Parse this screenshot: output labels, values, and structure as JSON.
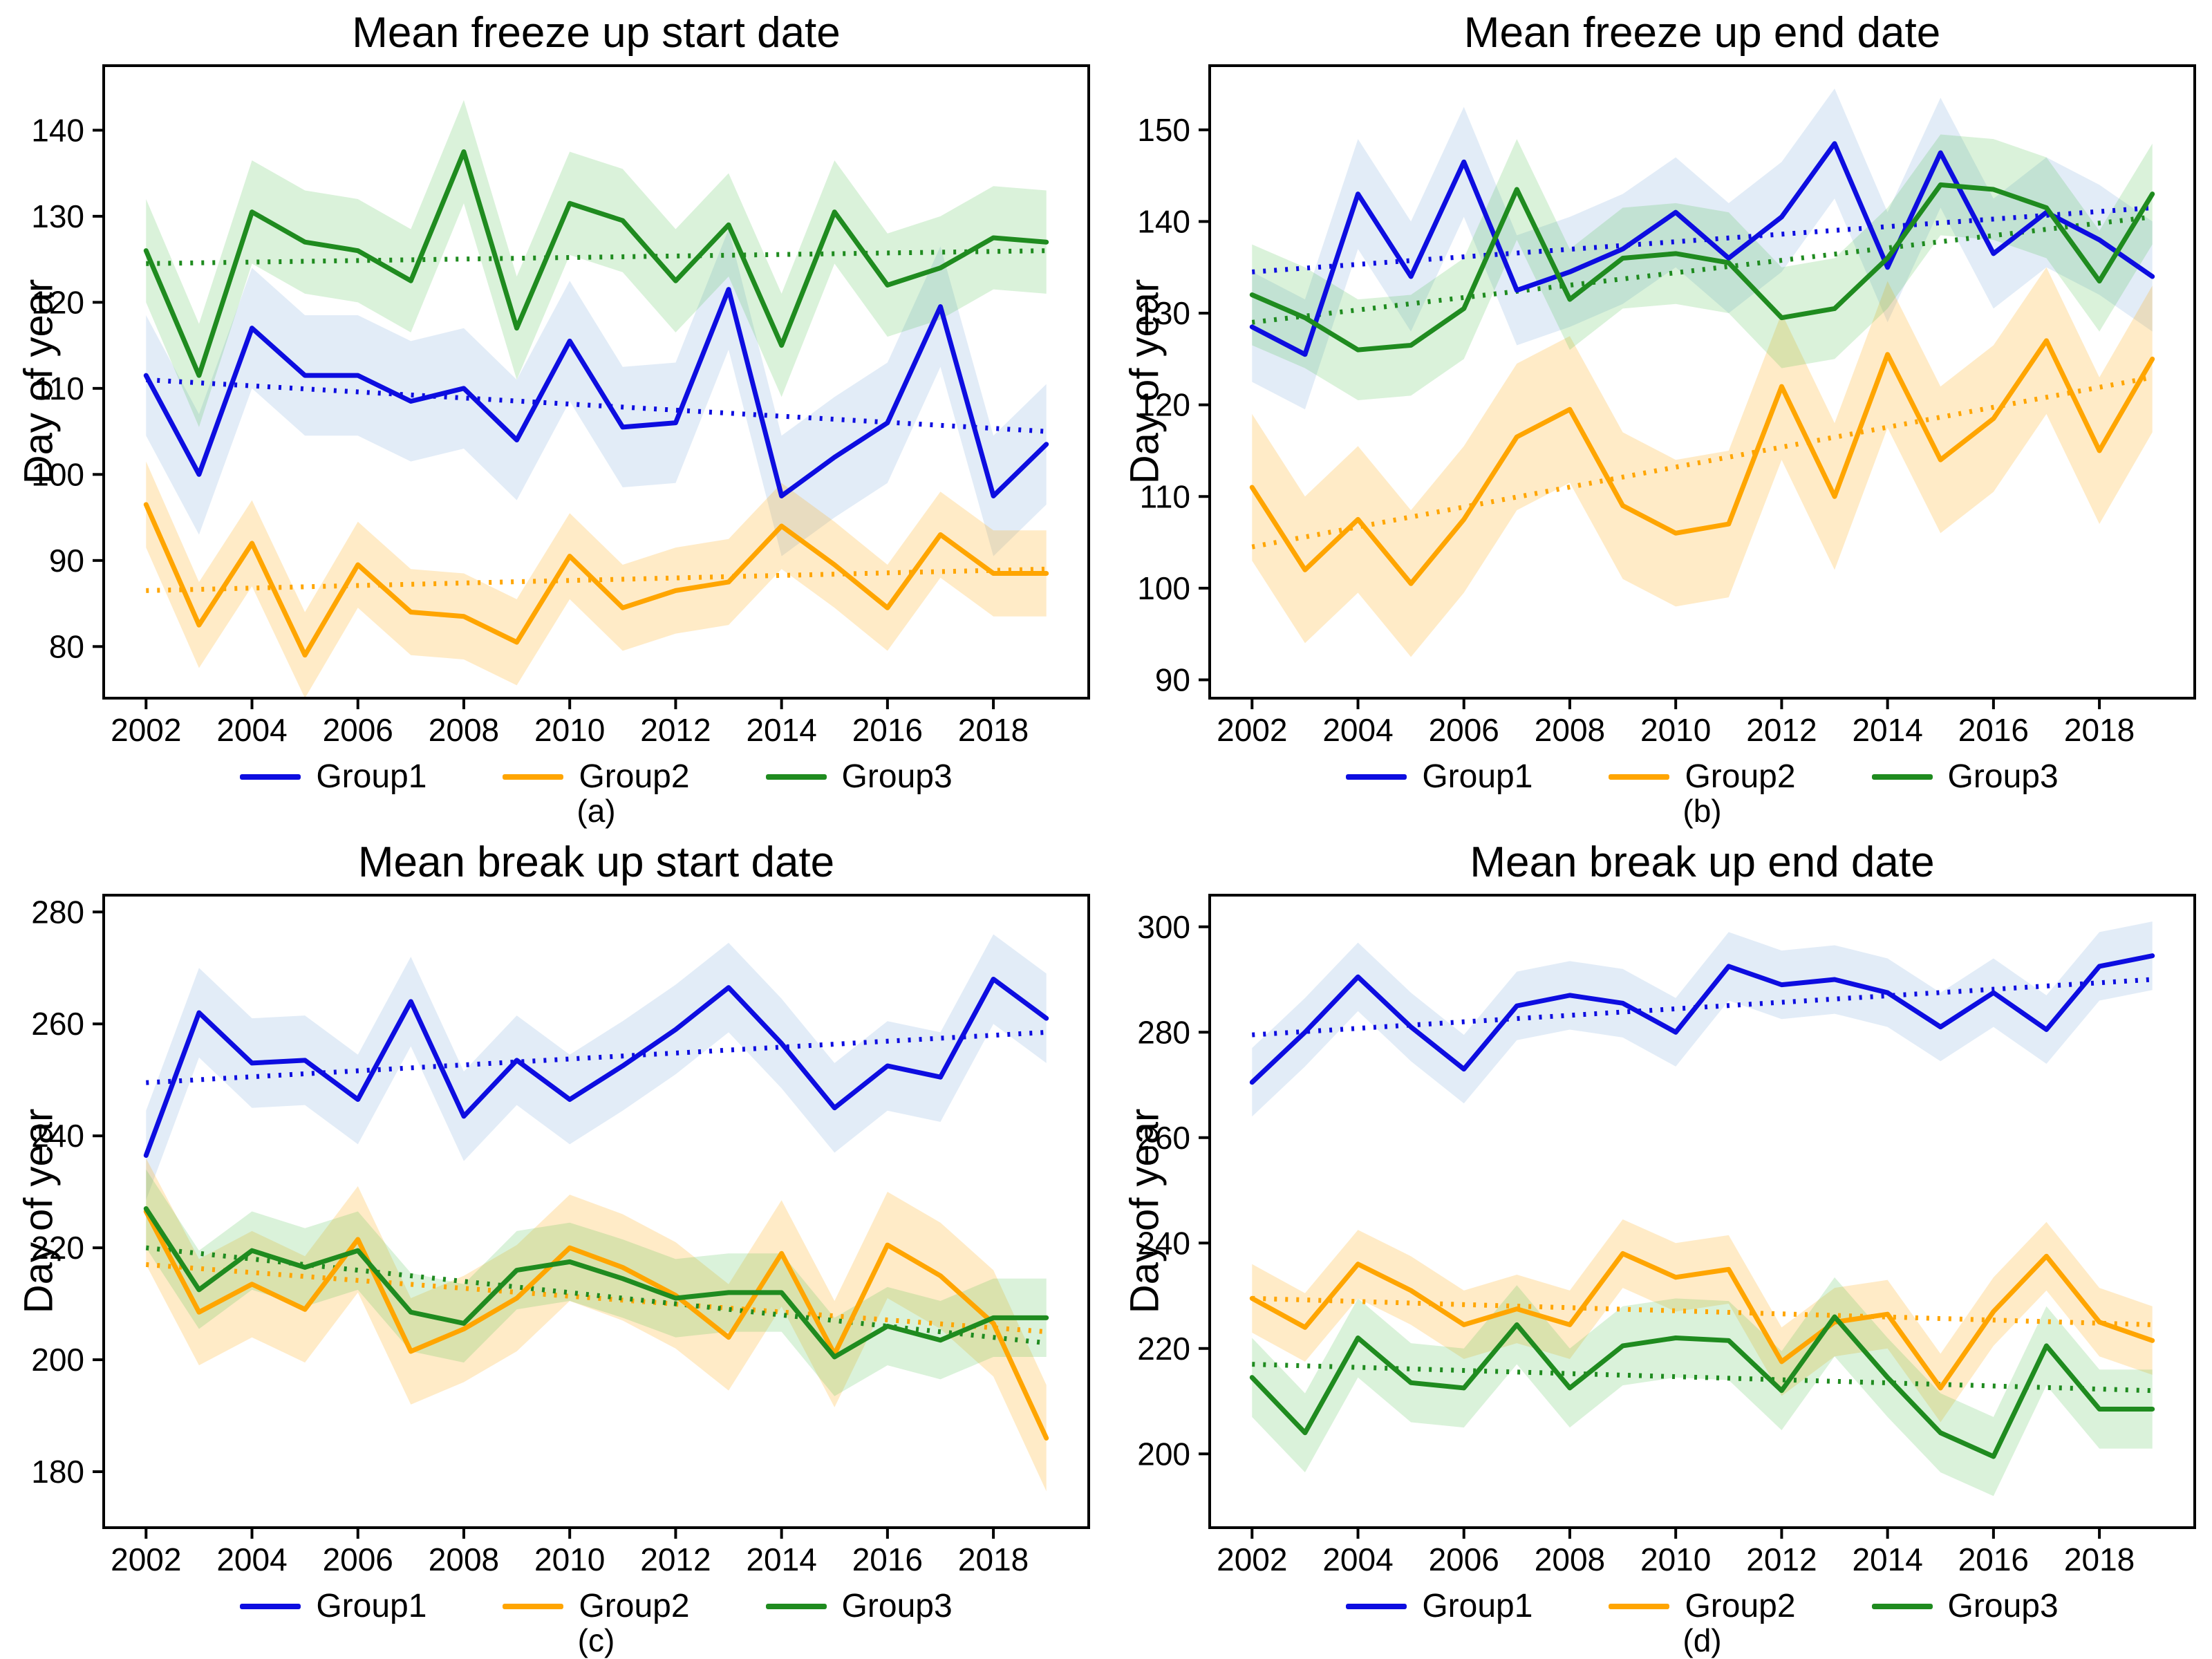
{
  "figure": {
    "background": "#ffffff",
    "ylabel": "Day of year",
    "legend_labels": [
      "Group1",
      "Group2",
      "Group3"
    ],
    "captions": [
      "(a)",
      "(b)",
      "(c)",
      "(d)"
    ]
  },
  "colors": {
    "group1": "#0d0de0",
    "group2": "#ffa500",
    "group3": "#1f8b1f",
    "band1": "rgba(110,160,215,0.20)",
    "band2": "rgba(255,165,0,0.22)",
    "band3": "rgba(70,190,70,0.20)",
    "axis": "#000000"
  },
  "chart_data": {
    "type": "line",
    "x": [
      2002,
      2003,
      2004,
      2005,
      2006,
      2007,
      2008,
      2009,
      2010,
      2011,
      2012,
      2013,
      2014,
      2015,
      2016,
      2017,
      2018,
      2019
    ],
    "xticks": [
      2002,
      2004,
      2006,
      2008,
      2010,
      2012,
      2014,
      2016,
      2018
    ],
    "xlim": [
      2001.2,
      2019.8
    ],
    "ylabel": "Day of year",
    "legend_position": "bottom",
    "grid": false,
    "panels": [
      {
        "id": "a",
        "title": "Mean freeze up start date",
        "caption": "(a)",
        "ylim": [
          74,
          147.5
        ],
        "yticks": [
          80,
          90,
          100,
          110,
          120,
          130,
          140
        ],
        "series": [
          {
            "name": "Group1",
            "color": "group1",
            "band": "band1",
            "ci": 7,
            "values": [
              111.5,
              100,
              117,
              111.5,
              111.5,
              108.5,
              110,
              104,
              115.5,
              105.5,
              106,
              121.5,
              97.5,
              102,
              106,
              119.5,
              97.5,
              103.5
            ],
            "trend": [
              111,
              105
            ]
          },
          {
            "name": "Group2",
            "color": "group2",
            "band": "band2",
            "ci": 5,
            "values": [
              96.5,
              82.5,
              92,
              79,
              89.5,
              84,
              83.5,
              80.5,
              90.5,
              84.5,
              86.5,
              87.5,
              94,
              89.5,
              84.5,
              93,
              88.5,
              88.5
            ],
            "trend": [
              86.5,
              89
            ]
          },
          {
            "name": "Group3",
            "color": "group3",
            "band": "band3",
            "ci": 6,
            "values": [
              126,
              111.5,
              130.5,
              127,
              126,
              122.5,
              137.5,
              117,
              131.5,
              129.5,
              122.5,
              129,
              115,
              130.5,
              122,
              124,
              127.5,
              127
            ],
            "trend": [
              124.5,
              126
            ]
          }
        ]
      },
      {
        "id": "b",
        "title": "Mean freeze up end date",
        "caption": "(b)",
        "ylim": [
          88,
          157
        ],
        "yticks": [
          90,
          100,
          110,
          120,
          130,
          140,
          150
        ],
        "series": [
          {
            "name": "Group1",
            "color": "group1",
            "band": "band1",
            "ci": 6,
            "values": [
              128.5,
              125.5,
              143,
              134,
              146.5,
              132.5,
              134.5,
              137,
              141,
              136,
              140.5,
              148.5,
              135,
              147.5,
              136.5,
              141,
              138,
              134
            ],
            "trend": [
              134.5,
              141.5
            ]
          },
          {
            "name": "Group2",
            "color": "group2",
            "band": "band2",
            "ci": 8,
            "values": [
              111,
              102,
              107.5,
              100.5,
              107.5,
              116.5,
              119.5,
              109,
              106,
              107,
              122,
              110,
              125.5,
              114,
              118.5,
              127,
              115,
              125
            ],
            "trend": [
              104.5,
              123
            ]
          },
          {
            "name": "Group3",
            "color": "group3",
            "band": "band3",
            "ci": 5.5,
            "values": [
              132,
              129.5,
              126,
              126.5,
              130.5,
              143.5,
              131.5,
              136,
              136.5,
              135.5,
              129.5,
              130.5,
              136,
              144,
              143.5,
              141.5,
              133.5,
              143
            ],
            "trend": [
              129,
              140.5
            ]
          }
        ]
      },
      {
        "id": "c",
        "title": "Mean break up start date",
        "caption": "(c)",
        "ylim": [
          170,
          283
        ],
        "yticks": [
          180,
          200,
          220,
          240,
          260,
          280
        ],
        "series": [
          {
            "name": "Group1",
            "color": "group1",
            "band": "band1",
            "ci": 8,
            "values": [
              236.5,
              262,
              253,
              253.5,
              246.5,
              264,
              243.5,
              253.5,
              246.5,
              252.5,
              259,
              266.5,
              256.5,
              245,
              252.5,
              250.5,
              268,
              261
            ],
            "trend": [
              249.5,
              258.5
            ]
          },
          {
            "name": "Group2",
            "color": "group2",
            "band": "band2",
            "ci": 9.5,
            "values": [
              226.5,
              208.5,
              213.5,
              209,
              221.5,
              201.5,
              205.5,
              211,
              220,
              216.5,
              211.5,
              204,
              219,
              201,
              220.5,
              215,
              206.5,
              186
            ],
            "trend": [
              217,
              205
            ]
          },
          {
            "name": "Group3",
            "color": "group3",
            "band": "band3",
            "ci": 7,
            "values": [
              227,
              212.5,
              219.5,
              216.5,
              219.5,
              208.5,
              206.5,
              216,
              217.5,
              214.5,
              211,
              212,
              212,
              200.5,
              206,
              203.5,
              207.5,
              207.5
            ],
            "trend": [
              220,
              203
            ]
          }
        ]
      },
      {
        "id": "d",
        "title": "Mean break up end date",
        "caption": "(d)",
        "ylim": [
          186,
          306
        ],
        "yticks": [
          200,
          220,
          240,
          260,
          280,
          300
        ],
        "series": [
          {
            "name": "Group1",
            "color": "group1",
            "band": "band1",
            "ci": 6.5,
            "values": [
              270.5,
              280,
              290.5,
              281,
              273,
              285,
              287,
              285.5,
              280,
              292.5,
              289,
              290,
              287.5,
              281,
              287.5,
              280.5,
              292.5,
              294.5
            ],
            "trend": [
              279.5,
              290
            ]
          },
          {
            "name": "Group2",
            "color": "group2",
            "band": "band2",
            "ci": 6.5,
            "values": [
              229.5,
              224,
              236,
              231,
              224.5,
              227.5,
              224.5,
              238,
              233.5,
              235,
              217.5,
              225,
              226.5,
              212.5,
              227,
              237.5,
              225,
              221.5
            ],
            "trend": [
              229.5,
              224.5
            ]
          },
          {
            "name": "Group3",
            "color": "group3",
            "band": "band3",
            "ci": 7.5,
            "values": [
              214.5,
              204,
              222,
              213.5,
              212.5,
              224.5,
              212.5,
              220.5,
              222,
              221.5,
              212,
              226,
              214.5,
              204,
              199.5,
              220.5,
              208.5,
              208.5
            ],
            "trend": [
              217,
              212
            ]
          }
        ]
      }
    ]
  }
}
